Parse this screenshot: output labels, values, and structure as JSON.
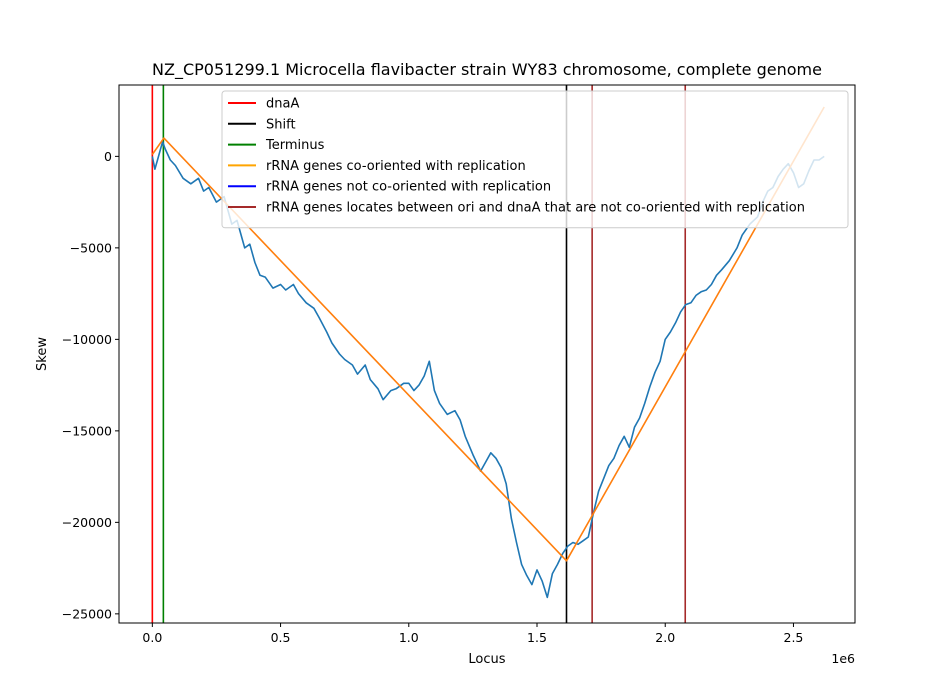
{
  "chart_data": {
    "type": "line",
    "title": "NZ_CP051299.1 Microcella flavibacter strain WY83 chromosome, complete genome",
    "xlabel": "Locus",
    "ylabel": "Skew",
    "x_offset_label": "1e6",
    "xlim": [
      -0.13,
      2.74
    ],
    "ylim": [
      -25500,
      3900
    ],
    "x_ticks": [
      0.0,
      0.5,
      1.0,
      1.5,
      2.0,
      2.5
    ],
    "x_tick_labels": [
      "0.0",
      "0.5",
      "1.0",
      "1.5",
      "2.0",
      "2.5"
    ],
    "y_ticks": [
      0,
      -5000,
      -10000,
      -15000,
      -20000,
      -25000
    ],
    "y_tick_labels": [
      "0",
      "−5000",
      "−10000",
      "−15000",
      "−20000",
      "−25000"
    ],
    "grid": false,
    "legend_position": "top-right",
    "legend": [
      {
        "label": "dnaA",
        "color": "#ff0000"
      },
      {
        "label": "Shift",
        "color": "#000000"
      },
      {
        "label": "Terminus",
        "color": "#008000"
      },
      {
        "label": "rRNA genes co-oriented with replication",
        "color": "#ffa500"
      },
      {
        "label": "rRNA genes not co-oriented with replication",
        "color": "#0000ff"
      },
      {
        "label": "rRNA genes locates between ori and dnaA that are not co-oriented with replication",
        "color": "#a52a2a"
      }
    ],
    "vlines": [
      {
        "x": 0.0,
        "color": "#ff0000"
      },
      {
        "x": 0.043,
        "color": "#008000"
      },
      {
        "x": 1.615,
        "color": "#000000"
      },
      {
        "x": 1.715,
        "color": "#a52a2a"
      },
      {
        "x": 2.078,
        "color": "#a52a2a"
      }
    ],
    "series": [
      {
        "color": "#1f77b4",
        "x": [
          0.0,
          0.01,
          0.02,
          0.04,
          0.05,
          0.07,
          0.09,
          0.12,
          0.15,
          0.18,
          0.2,
          0.22,
          0.25,
          0.28,
          0.31,
          0.33,
          0.36,
          0.38,
          0.4,
          0.42,
          0.44,
          0.47,
          0.5,
          0.52,
          0.55,
          0.57,
          0.6,
          0.63,
          0.65,
          0.68,
          0.7,
          0.73,
          0.75,
          0.78,
          0.8,
          0.83,
          0.85,
          0.88,
          0.9,
          0.93,
          0.95,
          0.98,
          1.0,
          1.02,
          1.04,
          1.06,
          1.08,
          1.1,
          1.12,
          1.15,
          1.18,
          1.2,
          1.22,
          1.25,
          1.28,
          1.3,
          1.32,
          1.34,
          1.36,
          1.38,
          1.4,
          1.42,
          1.44,
          1.46,
          1.48,
          1.5,
          1.52,
          1.54,
          1.56,
          1.58,
          1.6,
          1.62,
          1.64,
          1.66,
          1.68,
          1.7,
          1.72,
          1.74,
          1.76,
          1.78,
          1.8,
          1.82,
          1.84,
          1.86,
          1.88,
          1.9,
          1.92,
          1.94,
          1.96,
          1.98,
          2.0,
          2.02,
          2.04,
          2.06,
          2.08,
          2.1,
          2.12,
          2.14,
          2.16,
          2.18,
          2.2,
          2.22,
          2.25,
          2.28,
          2.3,
          2.33,
          2.36,
          2.38,
          2.4,
          2.42,
          2.44,
          2.46,
          2.48,
          2.5,
          2.52,
          2.54,
          2.56,
          2.58,
          2.6,
          2.62
        ],
        "y": [
          0,
          -700,
          -200,
          800,
          400,
          -200,
          -500,
          -1200,
          -1500,
          -1200,
          -1900,
          -1700,
          -2500,
          -2200,
          -3700,
          -3500,
          -5000,
          -4800,
          -5800,
          -6500,
          -6600,
          -7200,
          -7000,
          -7300,
          -7000,
          -7500,
          -8000,
          -8300,
          -8800,
          -9600,
          -10200,
          -10800,
          -11100,
          -11400,
          -11900,
          -11400,
          -12200,
          -12700,
          -13300,
          -12800,
          -12700,
          -12400,
          -12400,
          -12800,
          -12500,
          -12000,
          -11200,
          -12800,
          -13500,
          -14100,
          -13900,
          -14400,
          -15300,
          -16300,
          -17200,
          -16700,
          -16200,
          -16500,
          -17000,
          -17900,
          -19800,
          -21100,
          -22300,
          -22900,
          -23400,
          -22600,
          -23200,
          -24100,
          -22800,
          -22300,
          -21700,
          -21300,
          -21100,
          -21200,
          -21000,
          -20800,
          -19500,
          -18300,
          -17600,
          -16900,
          -16500,
          -15800,
          -15300,
          -15900,
          -14800,
          -14300,
          -13500,
          -12600,
          -11800,
          -11200,
          -10000,
          -9600,
          -9100,
          -8500,
          -8100,
          -8000,
          -7600,
          -7400,
          -7300,
          -7000,
          -6500,
          -6200,
          -5700,
          -5000,
          -4300,
          -3700,
          -3300,
          -2500,
          -1900,
          -1700,
          -1100,
          -700,
          -400,
          -900,
          -1700,
          -1500,
          -800,
          -200,
          -200,
          0
        ]
      },
      {
        "color": "#ff7f0e",
        "x": [
          0.0,
          0.045,
          1.615,
          2.62
        ],
        "y": [
          100,
          1000,
          -22100,
          2700
        ]
      }
    ]
  }
}
